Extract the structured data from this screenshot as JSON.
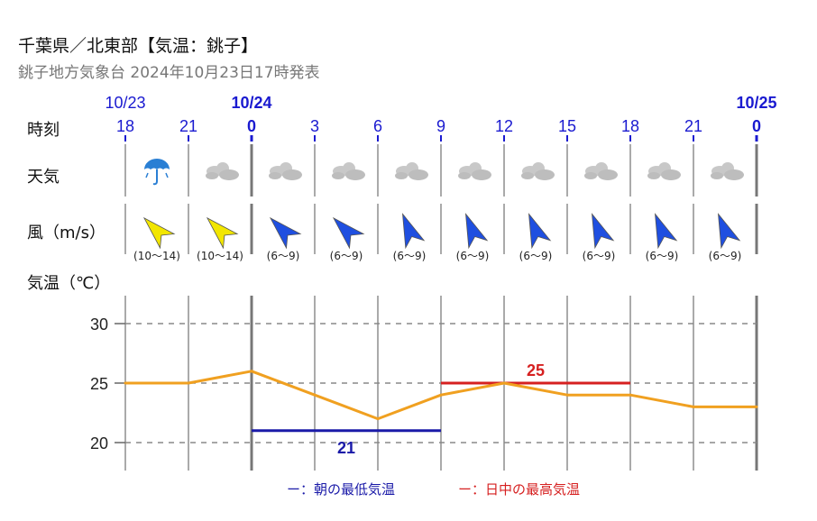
{
  "header": {
    "title": "千葉県／北東部【気温：銚子】",
    "subtitle": "銚子地方気象台 2024年10月23日17時発表"
  },
  "row_labels": {
    "time": "時刻",
    "weather": "天気",
    "wind": "風（m/s）",
    "temperature": "気温（℃）"
  },
  "dates": [
    {
      "label": "10/23",
      "col": 0,
      "bold": false
    },
    {
      "label": "10/24",
      "col": 2,
      "bold": true
    },
    {
      "label": "10/25",
      "col": 10,
      "bold": true
    }
  ],
  "hours": [
    "18",
    "21",
    "0",
    "3",
    "6",
    "9",
    "12",
    "15",
    "18",
    "21",
    "0"
  ],
  "weather_icons": [
    "umbrella-rain-icon",
    "cloud-icon",
    "cloud-icon",
    "cloud-icon",
    "cloud-icon",
    "cloud-icon",
    "cloud-icon",
    "cloud-icon",
    "cloud-icon",
    "cloud-icon"
  ],
  "wind": [
    {
      "direction": "southwest",
      "speed": "(10〜14)",
      "color": "#f2e600"
    },
    {
      "direction": "southwest",
      "speed": "(10〜14)",
      "color": "#f2e600"
    },
    {
      "direction": "southwest",
      "speed": "(6〜9)",
      "color": "#1f4fe0"
    },
    {
      "direction": "southwest",
      "speed": "(6〜9)",
      "color": "#1f4fe0"
    },
    {
      "direction": "south-southwest",
      "speed": "(6〜9)",
      "color": "#1f4fe0"
    },
    {
      "direction": "south-southwest",
      "speed": "(6〜9)",
      "color": "#1f4fe0"
    },
    {
      "direction": "south-southwest",
      "speed": "(6〜9)",
      "color": "#1f4fe0"
    },
    {
      "direction": "south-southwest",
      "speed": "(6〜9)",
      "color": "#1f4fe0"
    },
    {
      "direction": "south-southwest",
      "speed": "(6〜9)",
      "color": "#1f4fe0"
    },
    {
      "direction": "south-southwest",
      "speed": "(6〜9)",
      "color": "#1f4fe0"
    }
  ],
  "chart_data": {
    "type": "line",
    "ylabel": "気温（℃）",
    "yticks": [
      20,
      25,
      30
    ],
    "ylim": [
      17.5,
      32.5
    ],
    "grid": "dashed horizontal at 20, 25, 30",
    "x": [
      "18",
      "21",
      "0",
      "3",
      "6",
      "9",
      "12",
      "15",
      "18",
      "21",
      "0"
    ],
    "series": [
      {
        "values": [
          25,
          25,
          26,
          24,
          22,
          24,
          25,
          24,
          24,
          23,
          23
        ],
        "color": "#f0a020"
      }
    ],
    "min_temp": {
      "value": 21,
      "label": "21",
      "from": "0",
      "to": "9",
      "color": "#1a1aa8"
    },
    "max_temp": {
      "value": 25,
      "label": "25",
      "from": "9",
      "to": "18",
      "color": "#d62020"
    }
  },
  "legend": {
    "min_label": "ー：朝の最低気温",
    "max_label": "ー：日中の最高気温"
  },
  "colors": {
    "accent_blue": "#1a1ad0",
    "temp_line": "#f0a020",
    "min_line": "#1a1aa8",
    "max_line": "#d62020",
    "grid": "#888888",
    "cloud": "#c8c8c8",
    "umbrella": "#2a7fd4"
  }
}
